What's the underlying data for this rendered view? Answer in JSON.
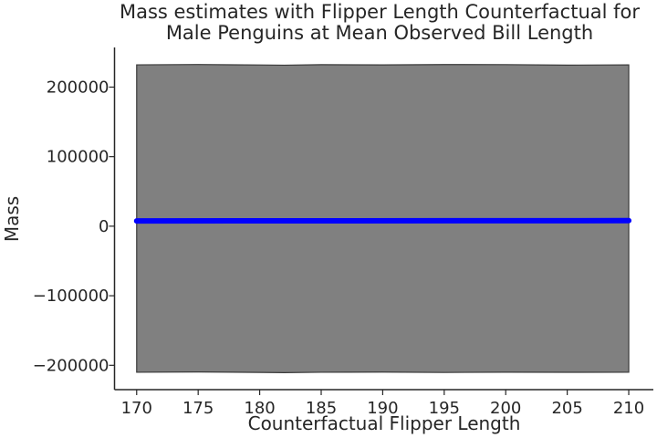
{
  "chart_data": {
    "type": "area",
    "title_lines": [
      "Mass estimates with Flipper Length Counterfactual for",
      "Male Penguins at Mean Observed Bill Length"
    ],
    "xlabel": "Counterfactual Flipper Length",
    "ylabel": "Mass",
    "xlim": [
      168.2,
      212
    ],
    "ylim": [
      -235000,
      257000
    ],
    "x_ticks": [
      170,
      175,
      180,
      185,
      190,
      195,
      200,
      205,
      210
    ],
    "x_tick_labels": [
      "170",
      "175",
      "180",
      "185",
      "190",
      "195",
      "200",
      "205",
      "210"
    ],
    "y_ticks": [
      -200000,
      -100000,
      0,
      100000,
      200000
    ],
    "y_tick_labels": [
      "−200000",
      "−100000",
      "0",
      "100000",
      "200000"
    ],
    "grid": false,
    "band": {
      "color": "#808080",
      "x": [
        170,
        175,
        180,
        182,
        185,
        190,
        195,
        200,
        205,
        210
      ],
      "upper": [
        232000,
        232500,
        231800,
        231500,
        232200,
        231900,
        232400,
        232300,
        231600,
        232000
      ],
      "lower": [
        -210000,
        -209600,
        -210200,
        -210600,
        -210000,
        -209700,
        -210300,
        -209900,
        -210100,
        -209900
      ]
    },
    "series": [
      {
        "color": "#0000ff",
        "x": [
          170,
          210
        ],
        "values": [
          7600,
          8000
        ]
      }
    ]
  }
}
